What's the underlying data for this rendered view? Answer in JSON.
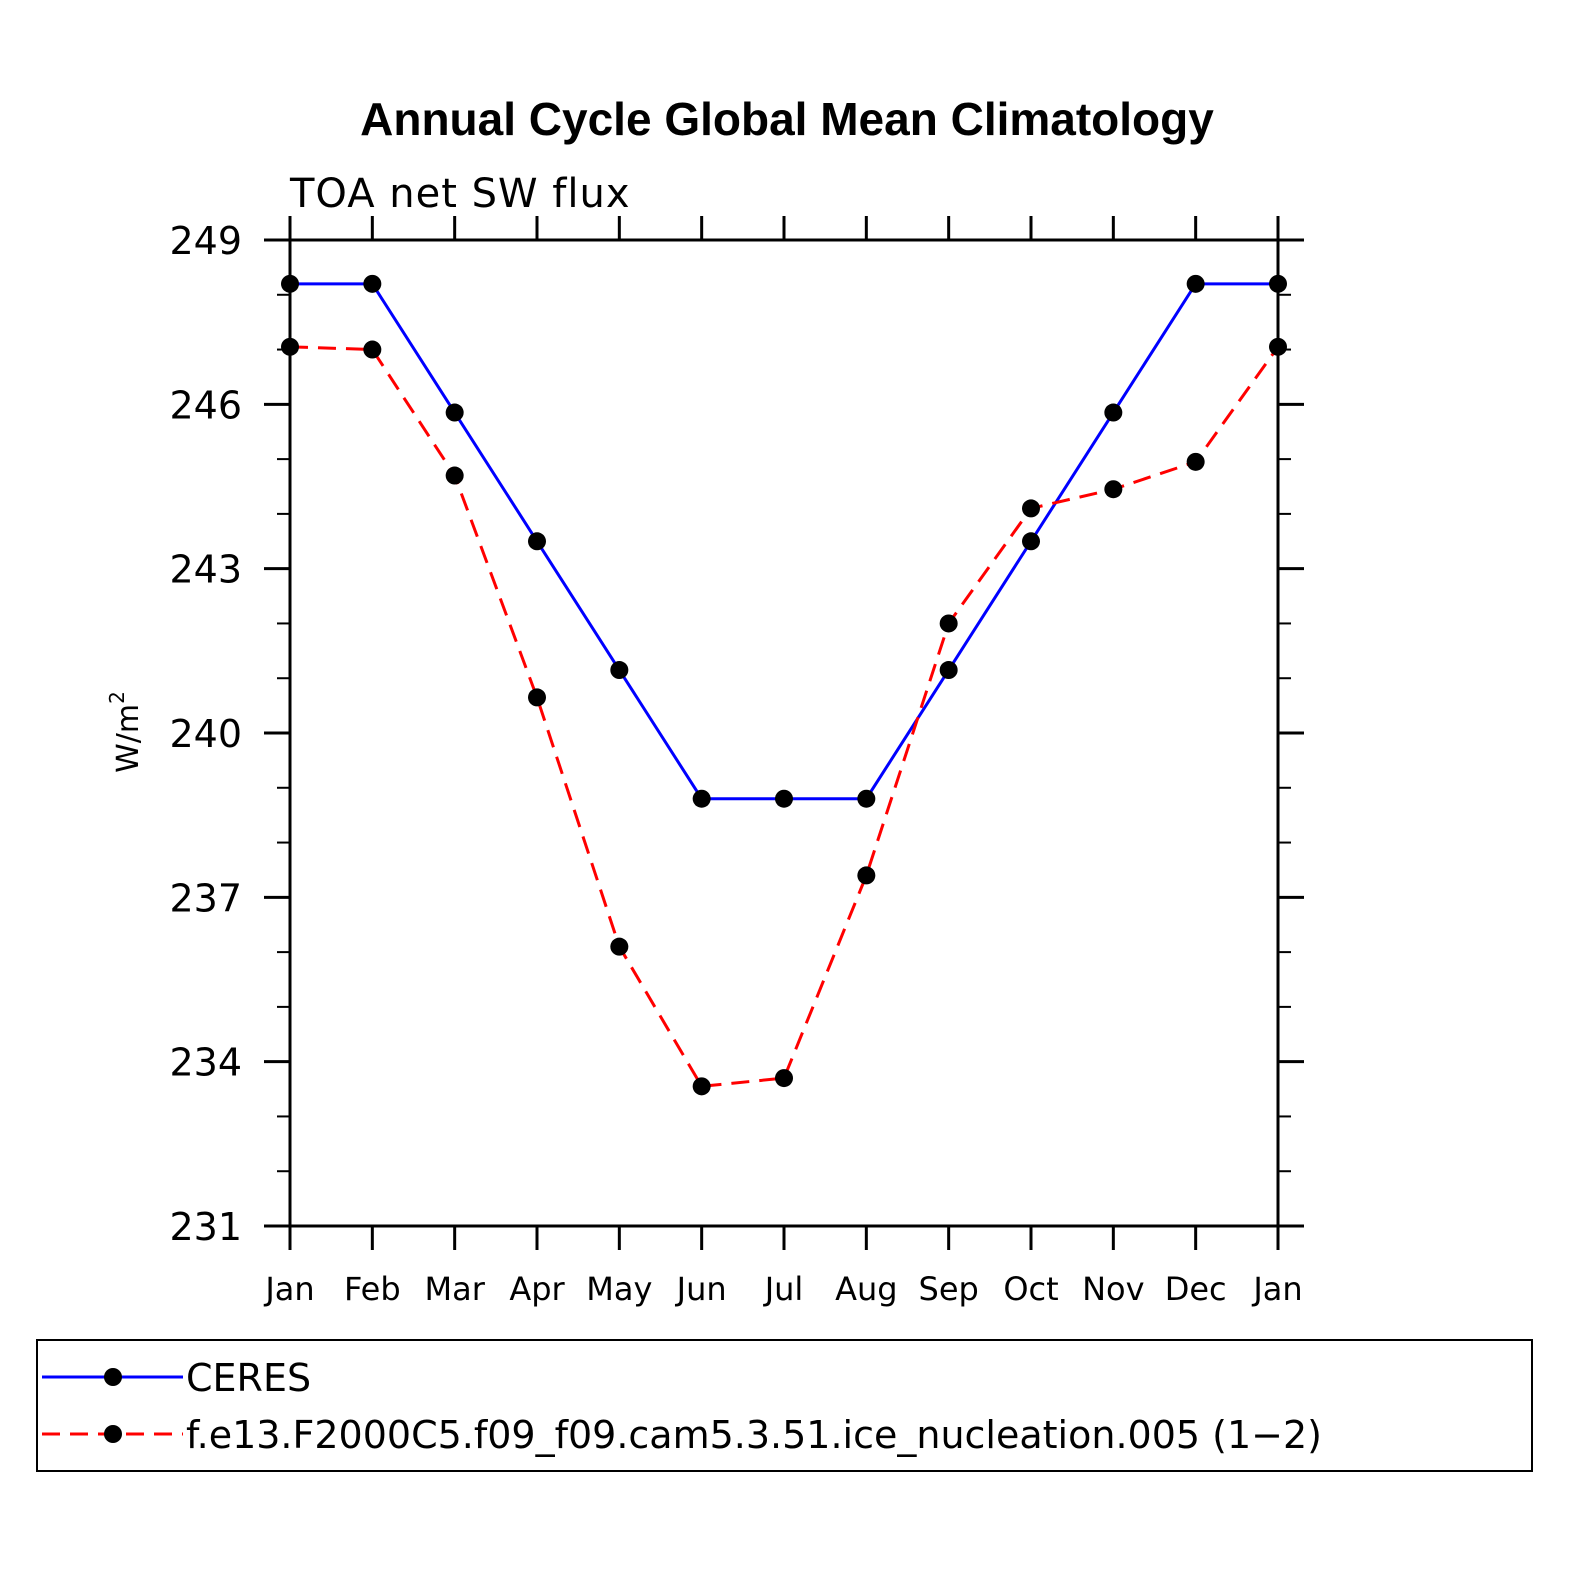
{
  "chart_data": {
    "type": "line",
    "title": "Annual Cycle Global Mean Climatology",
    "subtitle": "TOA  net  SW  flux",
    "ylabel": "W/m",
    "ylabel_sup": "2",
    "xlabel": "",
    "categories": [
      "Jan",
      "Feb",
      "Mar",
      "Apr",
      "May",
      "Jun",
      "Jul",
      "Aug",
      "Sep",
      "Oct",
      "Nov",
      "Dec",
      "Jan"
    ],
    "ylim": [
      231,
      249
    ],
    "yticks": [
      231,
      234,
      237,
      240,
      243,
      246,
      249
    ],
    "ytick_labels": [
      "231",
      "234",
      "237",
      "240",
      "243",
      "246",
      "249"
    ],
    "grid": false,
    "legend_position": "bottom",
    "series": [
      {
        "name": "CERES",
        "color": "#0000ff",
        "style": "solid",
        "values": [
          248.2,
          248.2,
          245.85,
          243.5,
          241.15,
          238.8,
          238.8,
          238.8,
          241.15,
          243.5,
          245.85,
          248.2,
          248.2
        ]
      },
      {
        "name": "f.e13.F2000C5.f09_f09.cam5.3.51.ice_nucleation.005 (1−2)",
        "color": "#ff0000",
        "style": "dashed",
        "values": [
          247.05,
          247.0,
          244.7,
          240.65,
          236.1,
          233.55,
          233.7,
          237.4,
          242.0,
          244.1,
          244.45,
          244.95,
          247.05
        ]
      }
    ]
  }
}
